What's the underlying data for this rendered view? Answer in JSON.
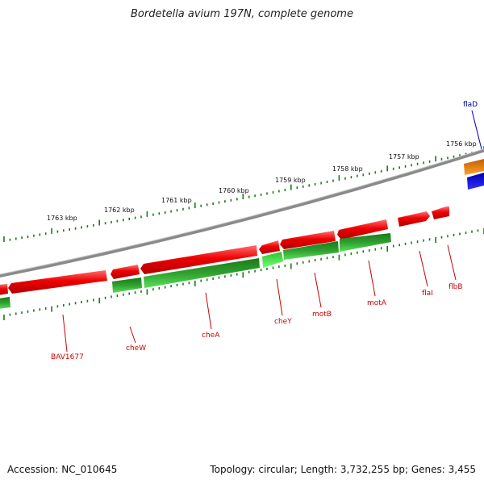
{
  "title": "Bordetella avium 197N, complete genome",
  "footer": {
    "accession": "Accession: NC_010645",
    "summary": "Topology: circular; Length: 3,732,255 bp; Genes: 3,455"
  },
  "colors": {
    "forward_gene": "#ee0000",
    "reverse_gene": "#22a022",
    "reverse_gene_light": "#44dd44",
    "orange_gene": "#f08000",
    "blue_gene": "#0000ee",
    "backbone": "#888888",
    "label_red": "#cc0000",
    "label_blue": "#0000aa"
  },
  "scale_labels": [
    "1763 kbp",
    "1762 kbp",
    "1761 kbp",
    "1760 kbp",
    "1759 kbp",
    "1758 kbp",
    "1757 kbp",
    "1756 kbp"
  ],
  "gene_labels": [
    {
      "name": "flaD",
      "color": "blue"
    },
    {
      "name": "BAV1677",
      "color": "red"
    },
    {
      "name": "cheW",
      "color": "red"
    },
    {
      "name": "cheA",
      "color": "red"
    },
    {
      "name": "cheY",
      "color": "red"
    },
    {
      "name": "motB",
      "color": "red"
    },
    {
      "name": "motA",
      "color": "red"
    },
    {
      "name": "flaI",
      "color": "red"
    },
    {
      "name": "flbB",
      "color": "red"
    }
  ]
}
